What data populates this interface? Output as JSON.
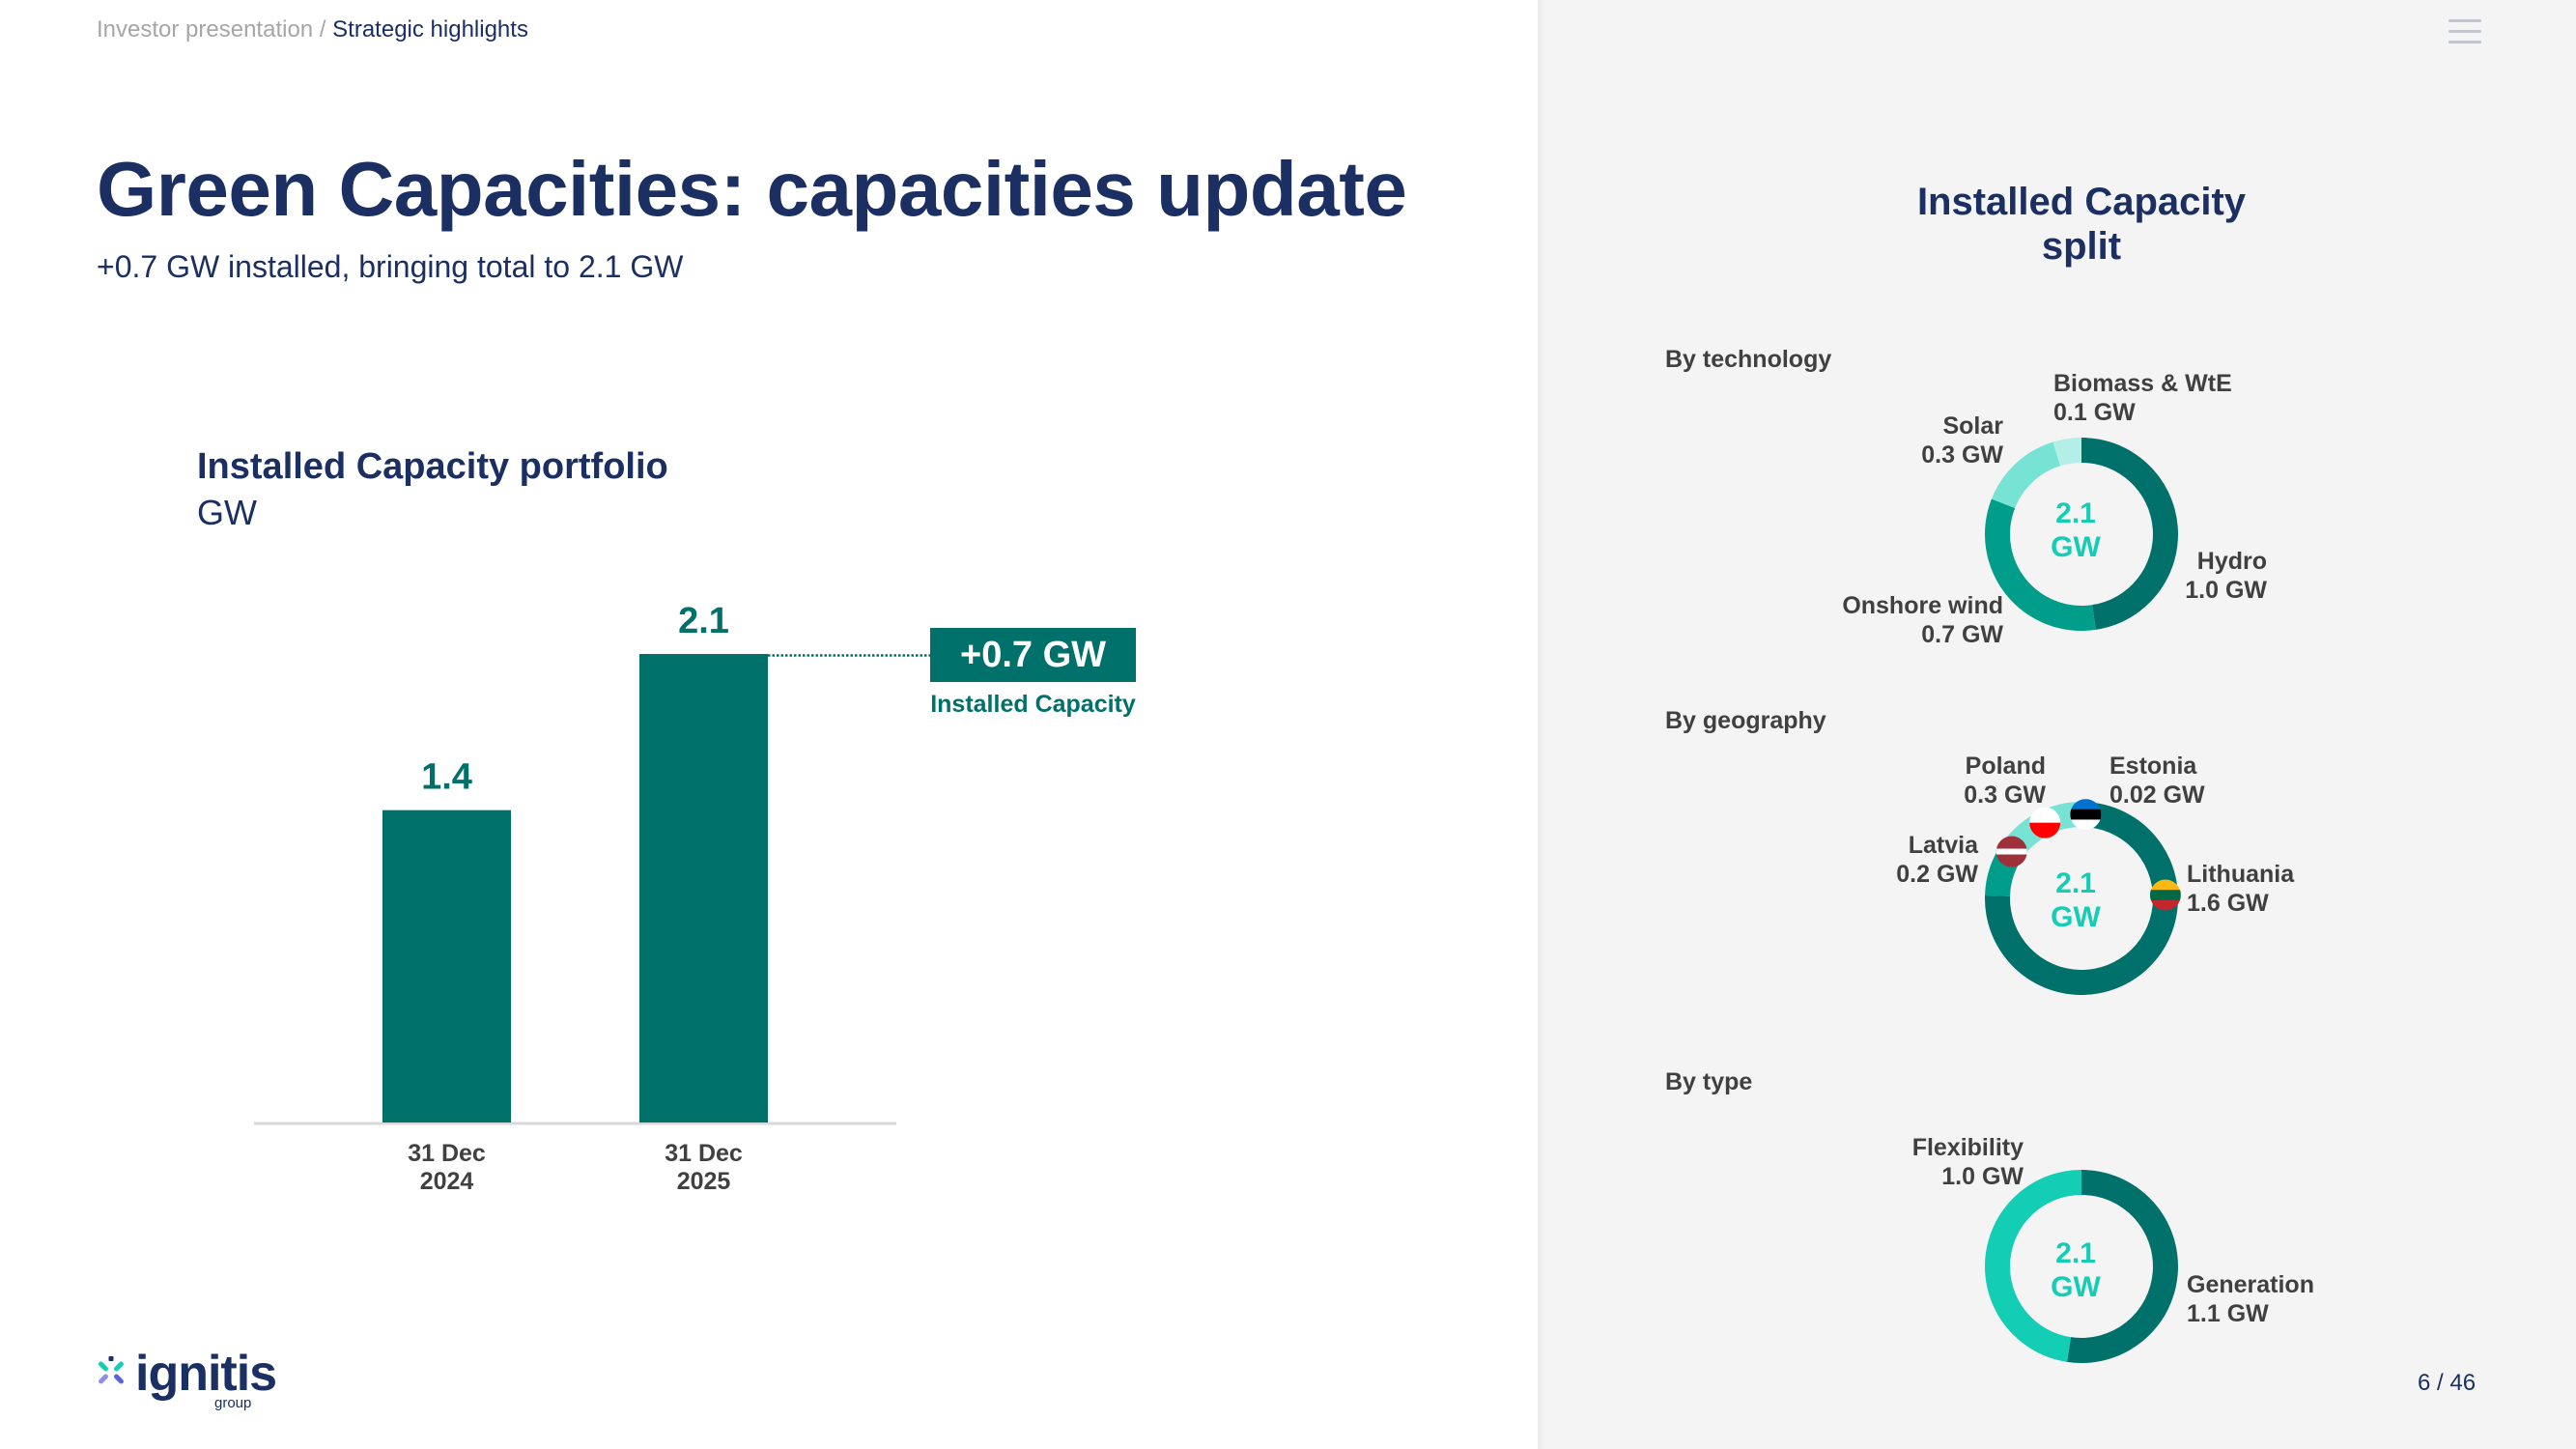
{
  "breadcrumb": {
    "parent": "Investor presentation",
    "separator": " / ",
    "current": "Strategic highlights"
  },
  "header": {
    "menu_icon": "hamburger-menu-icon"
  },
  "title": "Green Capacities: capacities update",
  "subtitle": "+0.7 GW installed, bringing total to 2.1 GW",
  "colors": {
    "navy": "#1b2f62",
    "teal_dark": "#00706b",
    "teal_mid": "#009d8b",
    "teal_light": "#77e3d4",
    "teal_pale": "#b3efe7",
    "turquoise": "#14cdb5",
    "text_grey": "#404040",
    "panel_bg": "#f4f4f4"
  },
  "chart_data": [
    {
      "type": "bar",
      "title": "Installed Capacity portfolio",
      "unit": "GW",
      "categories": [
        "31 Dec\n2024",
        "31 Dec\n2025"
      ],
      "category_lines": [
        [
          "31 Dec",
          "2024"
        ],
        [
          "31 Dec",
          "2025"
        ]
      ],
      "values": [
        1.4,
        2.1
      ],
      "data_labels": [
        "1.4",
        "2.1"
      ],
      "ylim": [
        0,
        2.1
      ],
      "grid": false,
      "annotation": {
        "value": "+0.7 GW",
        "label": "Installed Capacity",
        "connector": "dotted line from 2025 bar top"
      }
    },
    {
      "type": "pie",
      "variant": "donut",
      "title": "Installed Capacity split",
      "section": "By technology",
      "center_label": [
        "2.1",
        "GW"
      ],
      "total": 2.1,
      "slices": [
        {
          "name": "Hydro",
          "value": 1.0,
          "label": "1.0 GW",
          "color": "#00706b"
        },
        {
          "name": "Onshore wind",
          "value": 0.7,
          "label": "0.7 GW",
          "color": "#009d8b"
        },
        {
          "name": "Solar",
          "value": 0.3,
          "label": "0.3 GW",
          "color": "#77e3d4"
        },
        {
          "name": "Biomass & WtE",
          "value": 0.1,
          "label": "0.1 GW",
          "color": "#b3efe7"
        }
      ]
    },
    {
      "type": "pie",
      "variant": "donut",
      "section": "By geography",
      "center_label": [
        "2.1",
        "GW"
      ],
      "total": 2.1,
      "slices": [
        {
          "name": "Lithuania",
          "value": 1.6,
          "label": "1.6 GW",
          "color": "#00706b",
          "flag": "lithuania-flag"
        },
        {
          "name": "Latvia",
          "value": 0.2,
          "label": "0.2 GW",
          "color": "#009d8b",
          "flag": "latvia-flag"
        },
        {
          "name": "Poland",
          "value": 0.3,
          "label": "0.3 GW",
          "color": "#77e3d4",
          "flag": "poland-flag"
        },
        {
          "name": "Estonia",
          "value": 0.02,
          "label": "0.02 GW",
          "color": "#b3efe7",
          "flag": "estonia-flag"
        }
      ]
    },
    {
      "type": "pie",
      "variant": "donut",
      "section": "By type",
      "center_label": [
        "2.1",
        "GW"
      ],
      "total": 2.1,
      "slices": [
        {
          "name": "Generation",
          "value": 1.1,
          "label": "1.1 GW",
          "color": "#00706b"
        },
        {
          "name": "Flexibility",
          "value": 1.0,
          "label": "1.0 GW",
          "color": "#14cdb5"
        }
      ]
    }
  ],
  "right_panel": {
    "title_line1": "Installed Capacity",
    "title_line2": "split",
    "sections": [
      "By technology",
      "By geography",
      "By type"
    ]
  },
  "logo": {
    "word": "ignitis",
    "sub": "group"
  },
  "pagination": {
    "current": "6",
    "total": "46",
    "text": "6 / 46"
  }
}
